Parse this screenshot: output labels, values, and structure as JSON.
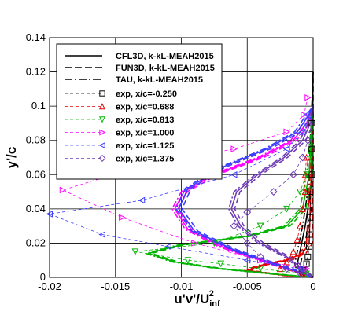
{
  "chart_data": {
    "type": "line",
    "xlabel": "u'v'/U",
    "xlabel_sub": "inf",
    "xlabel_sup": "2",
    "ylabel": "y'/c",
    "xlim": [
      -0.02,
      0.0
    ],
    "ylim": [
      0.0,
      0.14
    ],
    "x_ticks": [
      -0.02,
      -0.015,
      -0.01,
      -0.005,
      0.0
    ],
    "x_tick_labels": [
      "-0.02",
      "-0.015",
      "-0.01",
      "-0.005",
      "0"
    ],
    "y_ticks": [
      0,
      0.02,
      0.04,
      0.06,
      0.08,
      0.1,
      0.12,
      0.14
    ],
    "y_tick_labels": [
      "0",
      "0.02",
      "0.04",
      "0.06",
      "0.08",
      "0.1",
      "0.12",
      "0.14"
    ],
    "grid": true,
    "legend_position": "top-left",
    "colors": {
      "black": "#000000",
      "red": "#e60000",
      "green": "#00b400",
      "magenta": "#ff00ff",
      "blue": "#3c3cff",
      "purple": "#6e3cb4"
    },
    "cfd_legend": [
      {
        "name": "CFL3D, k-kL-MEAH2015",
        "dash": "solid"
      },
      {
        "name": "FUN3D, k-kL-MEAH2015",
        "dash": "dashed"
      },
      {
        "name": "TAU, k-kL-MEAH2015",
        "dash": "dashdot"
      }
    ],
    "exp_series": [
      {
        "name": "exp, x/c=-0.250",
        "color": "black",
        "marker": "square",
        "x": [
          -0.0006,
          -0.0005,
          -0.0004,
          -0.0003,
          -0.0003,
          -0.0002,
          -0.0002,
          -0.0001,
          -0.0001,
          -0.0001
        ],
        "y": [
          0.004,
          0.008,
          0.012,
          0.018,
          0.025,
          0.035,
          0.05,
          0.06,
          0.075,
          0.09
        ]
      },
      {
        "name": "exp, x/c=0.688",
        "color": "red",
        "marker": "triangle-up",
        "x": [
          -0.0008,
          -0.0025,
          -0.002,
          -0.0015,
          -0.0012,
          -0.001,
          -0.0008,
          -0.0006,
          -0.0006,
          -0.0005
        ],
        "y": [
          0.0025,
          0.005,
          0.009,
          0.015,
          0.022,
          0.03,
          0.04,
          0.05,
          0.06,
          0.07
        ]
      },
      {
        "name": "exp, x/c=0.813",
        "color": "green",
        "marker": "triangle-down",
        "x": [
          -0.0005,
          -0.004,
          -0.007,
          -0.0095,
          -0.0135,
          -0.0075,
          -0.004,
          -0.002,
          -0.001,
          -0.0005
        ],
        "y": [
          0.002,
          0.005,
          0.008,
          0.01,
          0.015,
          0.02,
          0.03,
          0.04,
          0.05,
          0.06
        ]
      },
      {
        "name": "exp, x/c=1.000",
        "color": "magenta",
        "marker": "triangle-right",
        "x": [
          -0.0005,
          -0.004,
          -0.009,
          -0.0145,
          -0.019,
          -0.013,
          -0.006,
          -0.002,
          -0.0007,
          -0.0004
        ],
        "y": [
          0.005,
          0.01,
          0.02,
          0.035,
          0.051,
          0.065,
          0.075,
          0.085,
          0.095,
          0.105
        ]
      },
      {
        "name": "exp, x/c=1.125",
        "color": "blue",
        "marker": "triangle-left",
        "x": [
          -0.001,
          -0.005,
          -0.011,
          -0.016,
          -0.02,
          -0.013,
          -0.006,
          -0.002,
          -0.0008,
          -0.0005
        ],
        "y": [
          0.005,
          0.01,
          0.018,
          0.025,
          0.037,
          0.045,
          0.06,
          0.075,
          0.085,
          0.095
        ]
      },
      {
        "name": "exp, x/c=1.375",
        "color": "purple",
        "marker": "diamond",
        "x": [
          -0.001,
          -0.002,
          -0.004,
          -0.005,
          -0.006,
          -0.005,
          -0.003,
          -0.0015,
          -0.0008,
          -0.0004
        ],
        "y": [
          0.0025,
          0.005,
          0.012,
          0.02,
          0.03,
          0.038,
          0.05,
          0.06,
          0.07,
          0.08
        ]
      }
    ],
    "cfd_curves": [
      {
        "color": "black",
        "x": [
          -0.0005,
          -0.001,
          -0.0012,
          -0.001,
          -0.0006,
          -0.0003,
          -0.0001,
          0.0
        ],
        "y": [
          0.0,
          0.003,
          0.008,
          0.015,
          0.03,
          0.045,
          0.06,
          0.12
        ]
      },
      {
        "color": "red",
        "x": [
          0.0,
          -0.002,
          -0.005,
          -0.004,
          -0.002,
          -0.0008,
          -0.0003,
          0.0
        ],
        "y": [
          0.0,
          0.001,
          0.004,
          0.007,
          0.01,
          0.014,
          0.02,
          0.1
        ]
      },
      {
        "color": "green",
        "x": [
          0.0,
          -0.003,
          -0.007,
          -0.0105,
          -0.0125,
          -0.01,
          -0.005,
          -0.002,
          -0.0008,
          -0.0003,
          0.0
        ],
        "y": [
          0.0,
          0.002,
          0.005,
          0.009,
          0.014,
          0.019,
          0.024,
          0.03,
          0.04,
          0.06,
          0.1
        ]
      },
      {
        "color": "magenta",
        "x": [
          0.0,
          -0.0015,
          -0.004,
          -0.007,
          -0.0095,
          -0.0105,
          -0.0098,
          -0.0075,
          -0.004,
          -0.0015,
          -0.0005,
          0.0
        ],
        "y": [
          0.0,
          0.004,
          0.01,
          0.018,
          0.028,
          0.04,
          0.05,
          0.06,
          0.07,
          0.08,
          0.09,
          0.1
        ]
      },
      {
        "color": "blue",
        "x": [
          0.0,
          -0.001,
          -0.003,
          -0.006,
          -0.009,
          -0.0102,
          -0.0095,
          -0.007,
          -0.0035,
          -0.0012,
          -0.0004,
          0.0
        ],
        "y": [
          0.0,
          0.003,
          0.008,
          0.016,
          0.027,
          0.04,
          0.052,
          0.064,
          0.075,
          0.085,
          0.094,
          0.1
        ]
      },
      {
        "color": "purple",
        "x": [
          0.0,
          -0.0008,
          -0.002,
          -0.004,
          -0.0055,
          -0.0062,
          -0.0058,
          -0.0042,
          -0.0022,
          -0.0008,
          -0.0002,
          0.0
        ],
        "y": [
          0.0,
          0.005,
          0.012,
          0.02,
          0.03,
          0.04,
          0.05,
          0.06,
          0.07,
          0.08,
          0.09,
          0.1
        ]
      }
    ]
  }
}
